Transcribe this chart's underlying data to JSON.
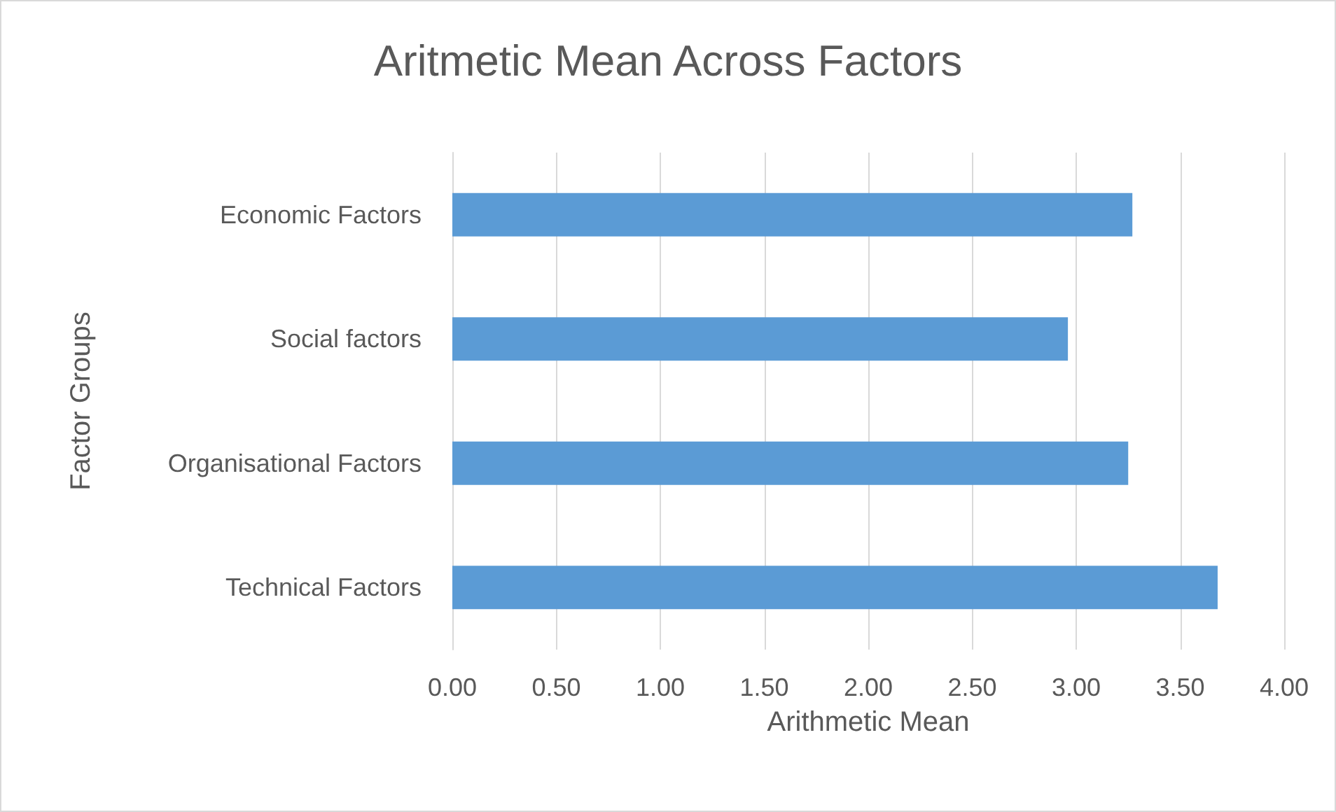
{
  "chart_data": {
    "type": "bar",
    "orientation": "horizontal",
    "title": "Aritmetic Mean Across Factors",
    "xlabel": "Arithmetic Mean",
    "ylabel": "Factor Groups",
    "categories": [
      "Economic Factors",
      "Social factors",
      "Organisational Factors",
      "Technical Factors"
    ],
    "values": [
      3.27,
      2.96,
      3.25,
      3.68
    ],
    "color": "#5b9bd5",
    "xlim": [
      0,
      4
    ],
    "xticks": [
      {
        "value": 0,
        "label": "0.00"
      },
      {
        "value": 0.5,
        "label": "0.50"
      },
      {
        "value": 1,
        "label": "1.00"
      },
      {
        "value": 1.5,
        "label": "1.50"
      },
      {
        "value": 2,
        "label": "2.00"
      },
      {
        "value": 2.5,
        "label": "2.50"
      },
      {
        "value": 3,
        "label": "3.00"
      },
      {
        "value": 3.5,
        "label": "3.50"
      },
      {
        "value": 4,
        "label": "4.00"
      }
    ],
    "grid": "x"
  }
}
